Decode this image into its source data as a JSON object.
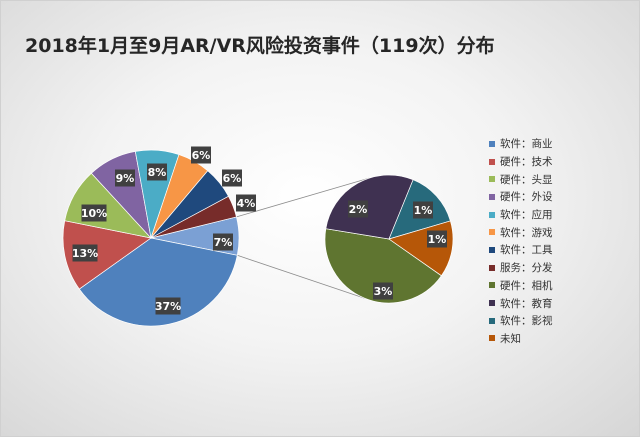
{
  "chart_data": {
    "type": "pie",
    "title": "2018年1月至9月AR/VR风险投资事件（119次）分布",
    "main_slices": [
      {
        "name": "软件：商业",
        "value": 37,
        "label": "37%",
        "color": "#4f81bd"
      },
      {
        "name": "硬件：技术",
        "value": 13,
        "label": "13%",
        "color": "#c0504d"
      },
      {
        "name": "硬件：头显",
        "value": 10,
        "label": "10%",
        "color": "#9bbb59"
      },
      {
        "name": "硬件：外设",
        "value": 9,
        "label": "9%",
        "color": "#8064a2"
      },
      {
        "name": "软件：应用",
        "value": 8,
        "label": "8%",
        "color": "#4bacc6"
      },
      {
        "name": "软件：游戏",
        "value": 6,
        "label": "6%",
        "color": "#f79646"
      },
      {
        "name": "软件：工具",
        "value": 6,
        "label": "6%",
        "color": "#1f497d"
      },
      {
        "name": "服务：分发",
        "value": 4,
        "label": "4%",
        "color": "#772c2a"
      }
    ],
    "other": {
      "value": 7,
      "label": "7%",
      "color": "#7ba0d4"
    },
    "secondary_slices": [
      {
        "name": "硬件：相机",
        "value": 3,
        "label": "3%",
        "color": "#5f7530"
      },
      {
        "name": "软件：教育",
        "value": 2,
        "label": "2%",
        "color": "#3f3151"
      },
      {
        "name": "软件：影视",
        "value": 1,
        "label": "1%",
        "color": "#276a7c"
      },
      {
        "name": "未知",
        "value": 1,
        "label": "1%",
        "color": "#b65708"
      }
    ],
    "legend": [
      {
        "name": "软件：商业",
        "color": "#4f81bd"
      },
      {
        "name": "硬件：技术",
        "color": "#c0504d"
      },
      {
        "name": "硬件：头显",
        "color": "#9bbb59"
      },
      {
        "name": "硬件：外设",
        "color": "#8064a2"
      },
      {
        "name": "软件：应用",
        "color": "#4bacc6"
      },
      {
        "name": "软件：游戏",
        "color": "#f79646"
      },
      {
        "name": "软件：工具",
        "color": "#1f497d"
      },
      {
        "name": "服务：分发",
        "color": "#772c2a"
      },
      {
        "name": "硬件：相机",
        "color": "#5f7530"
      },
      {
        "name": "软件：教育",
        "color": "#3f3151"
      },
      {
        "name": "软件：影视",
        "color": "#276a7c"
      },
      {
        "name": "未知",
        "color": "#b65708"
      }
    ],
    "legend_position": "right"
  }
}
